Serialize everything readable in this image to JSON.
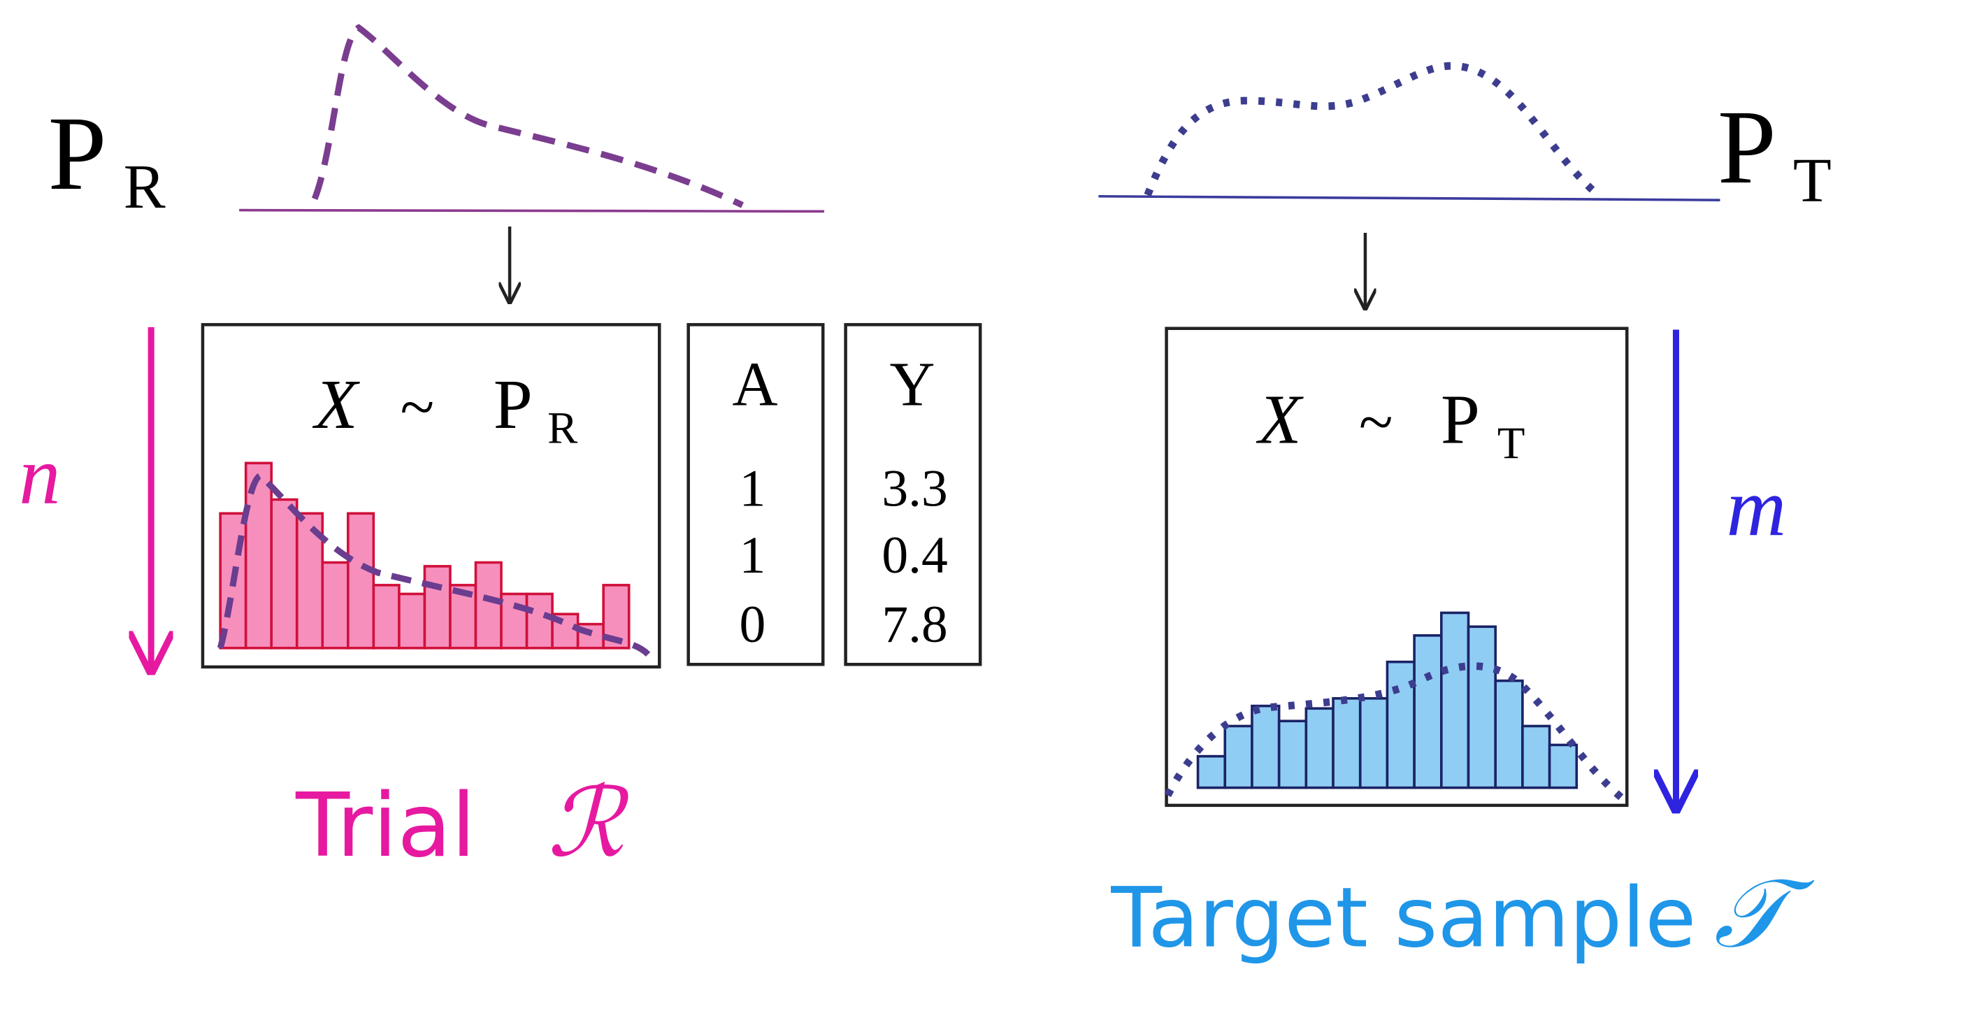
{
  "left": {
    "distribution": {
      "base": "P",
      "sub": "R"
    },
    "formula": {
      "var": "X",
      "op": "~",
      "base": "P",
      "sub": "R"
    },
    "count": "n",
    "caption": "Trial",
    "symbol": "ℛ"
  },
  "table": {
    "columns": [
      {
        "header": "A",
        "values": [
          1,
          1,
          0
        ]
      },
      {
        "header": "Y",
        "values": [
          3.3,
          0.4,
          7.8
        ]
      }
    ]
  },
  "right": {
    "distribution": {
      "base": "P",
      "sub": "T"
    },
    "formula": {
      "var": "X",
      "op": "~",
      "base": "P",
      "sub": "T"
    },
    "count": "m",
    "caption": "Target sample",
    "symbol": "𝒯"
  }
}
